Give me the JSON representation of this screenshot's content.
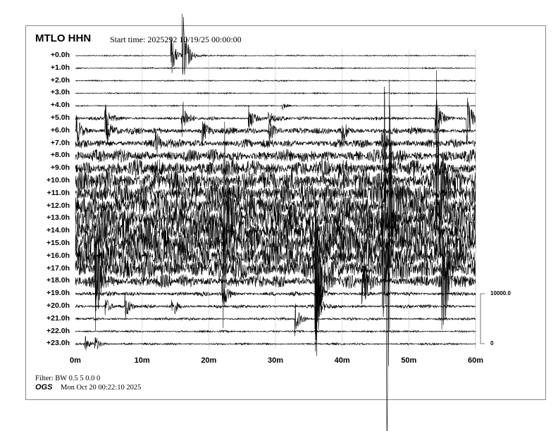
{
  "header": {
    "station": "MTLO HHN",
    "start_time": "Start time: 2025292 10/19/25 00:00:00"
  },
  "footer": {
    "filter": "Filter: BW 0.5 5 0.0 0",
    "org": "OGS",
    "timestamp": "Mon Oct 20 00:22:10 2025"
  },
  "chart_data": {
    "type": "line",
    "subtype": "helicorder",
    "row_labels": [
      "+0.0h",
      "+1.0h",
      "+2.0h",
      "+3.0h",
      "+4.0h",
      "+5.0h",
      "+6.0h",
      "+7.0h",
      "+8.0h",
      "+9.0h",
      "+10.0h",
      "+11.0h",
      "+12.0h",
      "+13.0h",
      "+14.0h",
      "+15.0h",
      "+16.0h",
      "+17.0h",
      "+18.0h",
      "+19.0h",
      "+20.0h",
      "+21.0h",
      "+22.0h",
      "+23.0h"
    ],
    "x_ticks": [
      "0m",
      "10m",
      "20m",
      "30m",
      "40m",
      "50m",
      "60m"
    ],
    "xlim": [
      0,
      60
    ],
    "grid": true,
    "scale_bar": {
      "top": "10000.0",
      "bottom": "0"
    },
    "noise_level_counts": [
      150,
      150,
      150,
      150,
      150,
      400,
      800,
      1000,
      1500,
      2000,
      2500,
      2500,
      3000,
      3000,
      3500,
      3500,
      3000,
      2500,
      1500,
      500,
      400,
      300,
      250,
      250
    ],
    "events": [
      {
        "hour": 0,
        "minute": 14.4,
        "amplitude": 4000
      },
      {
        "hour": 0,
        "minute": 16.1,
        "amplitude": 9000
      },
      {
        "hour": 4,
        "minute": 31,
        "amplitude": 800
      },
      {
        "hour": 5,
        "minute": 4.5,
        "amplitude": 3000
      },
      {
        "hour": 5,
        "minute": 16,
        "amplitude": 4000
      },
      {
        "hour": 5,
        "minute": 26,
        "amplitude": 3000
      },
      {
        "hour": 5,
        "minute": 29,
        "amplitude": 2000
      },
      {
        "hour": 5,
        "minute": 54,
        "amplitude": 5000
      },
      {
        "hour": 5,
        "minute": 58.6,
        "amplitude": 6000
      },
      {
        "hour": 6,
        "minute": 0.2,
        "amplitude": 3000
      },
      {
        "hour": 6,
        "minute": 4.5,
        "amplitude": 3000
      },
      {
        "hour": 6,
        "minute": 19,
        "amplitude": 2500
      },
      {
        "hour": 6,
        "minute": 29,
        "amplitude": 3000
      },
      {
        "hour": 6,
        "minute": 40,
        "amplitude": 2500
      },
      {
        "hour": 7,
        "minute": 12,
        "amplitude": 2500
      },
      {
        "hour": 7,
        "minute": 46,
        "amplitude": 5000
      },
      {
        "hour": 12,
        "minute": 46.4,
        "amplitude": 80000
      },
      {
        "hour": 10,
        "minute": 54.1,
        "amplitude": 35000
      },
      {
        "hour": 13,
        "minute": 22.2,
        "amplitude": 25000
      },
      {
        "hour": 17,
        "minute": 3,
        "amplitude": 10000
      },
      {
        "hour": 17,
        "minute": 36,
        "amplitude": 15000
      },
      {
        "hour": 17,
        "minute": 46,
        "amplitude": 15000
      },
      {
        "hour": 17,
        "minute": 55,
        "amplitude": 10000
      },
      {
        "hour": 18,
        "minute": 3,
        "amplitude": 10000
      },
      {
        "hour": 18,
        "minute": 36,
        "amplitude": 20000
      },
      {
        "hour": 18,
        "minute": 43,
        "amplitude": 6000
      },
      {
        "hour": 18,
        "minute": 55,
        "amplitude": 15000
      },
      {
        "hour": 19,
        "minute": 22,
        "amplitude": 4000
      },
      {
        "hour": 19,
        "minute": 36,
        "amplitude": 8000
      },
      {
        "hour": 20,
        "minute": 4.5,
        "amplitude": 2000
      },
      {
        "hour": 20,
        "minute": 7.5,
        "amplitude": 2500
      },
      {
        "hour": 20,
        "minute": 14.5,
        "amplitude": 2500
      },
      {
        "hour": 20,
        "minute": 36,
        "amplitude": 6000
      },
      {
        "hour": 21,
        "minute": 33,
        "amplitude": 4000
      },
      {
        "hour": 23,
        "minute": 1.5,
        "amplitude": 1500
      },
      {
        "hour": 23,
        "minute": 3,
        "amplitude": 1500
      }
    ]
  }
}
